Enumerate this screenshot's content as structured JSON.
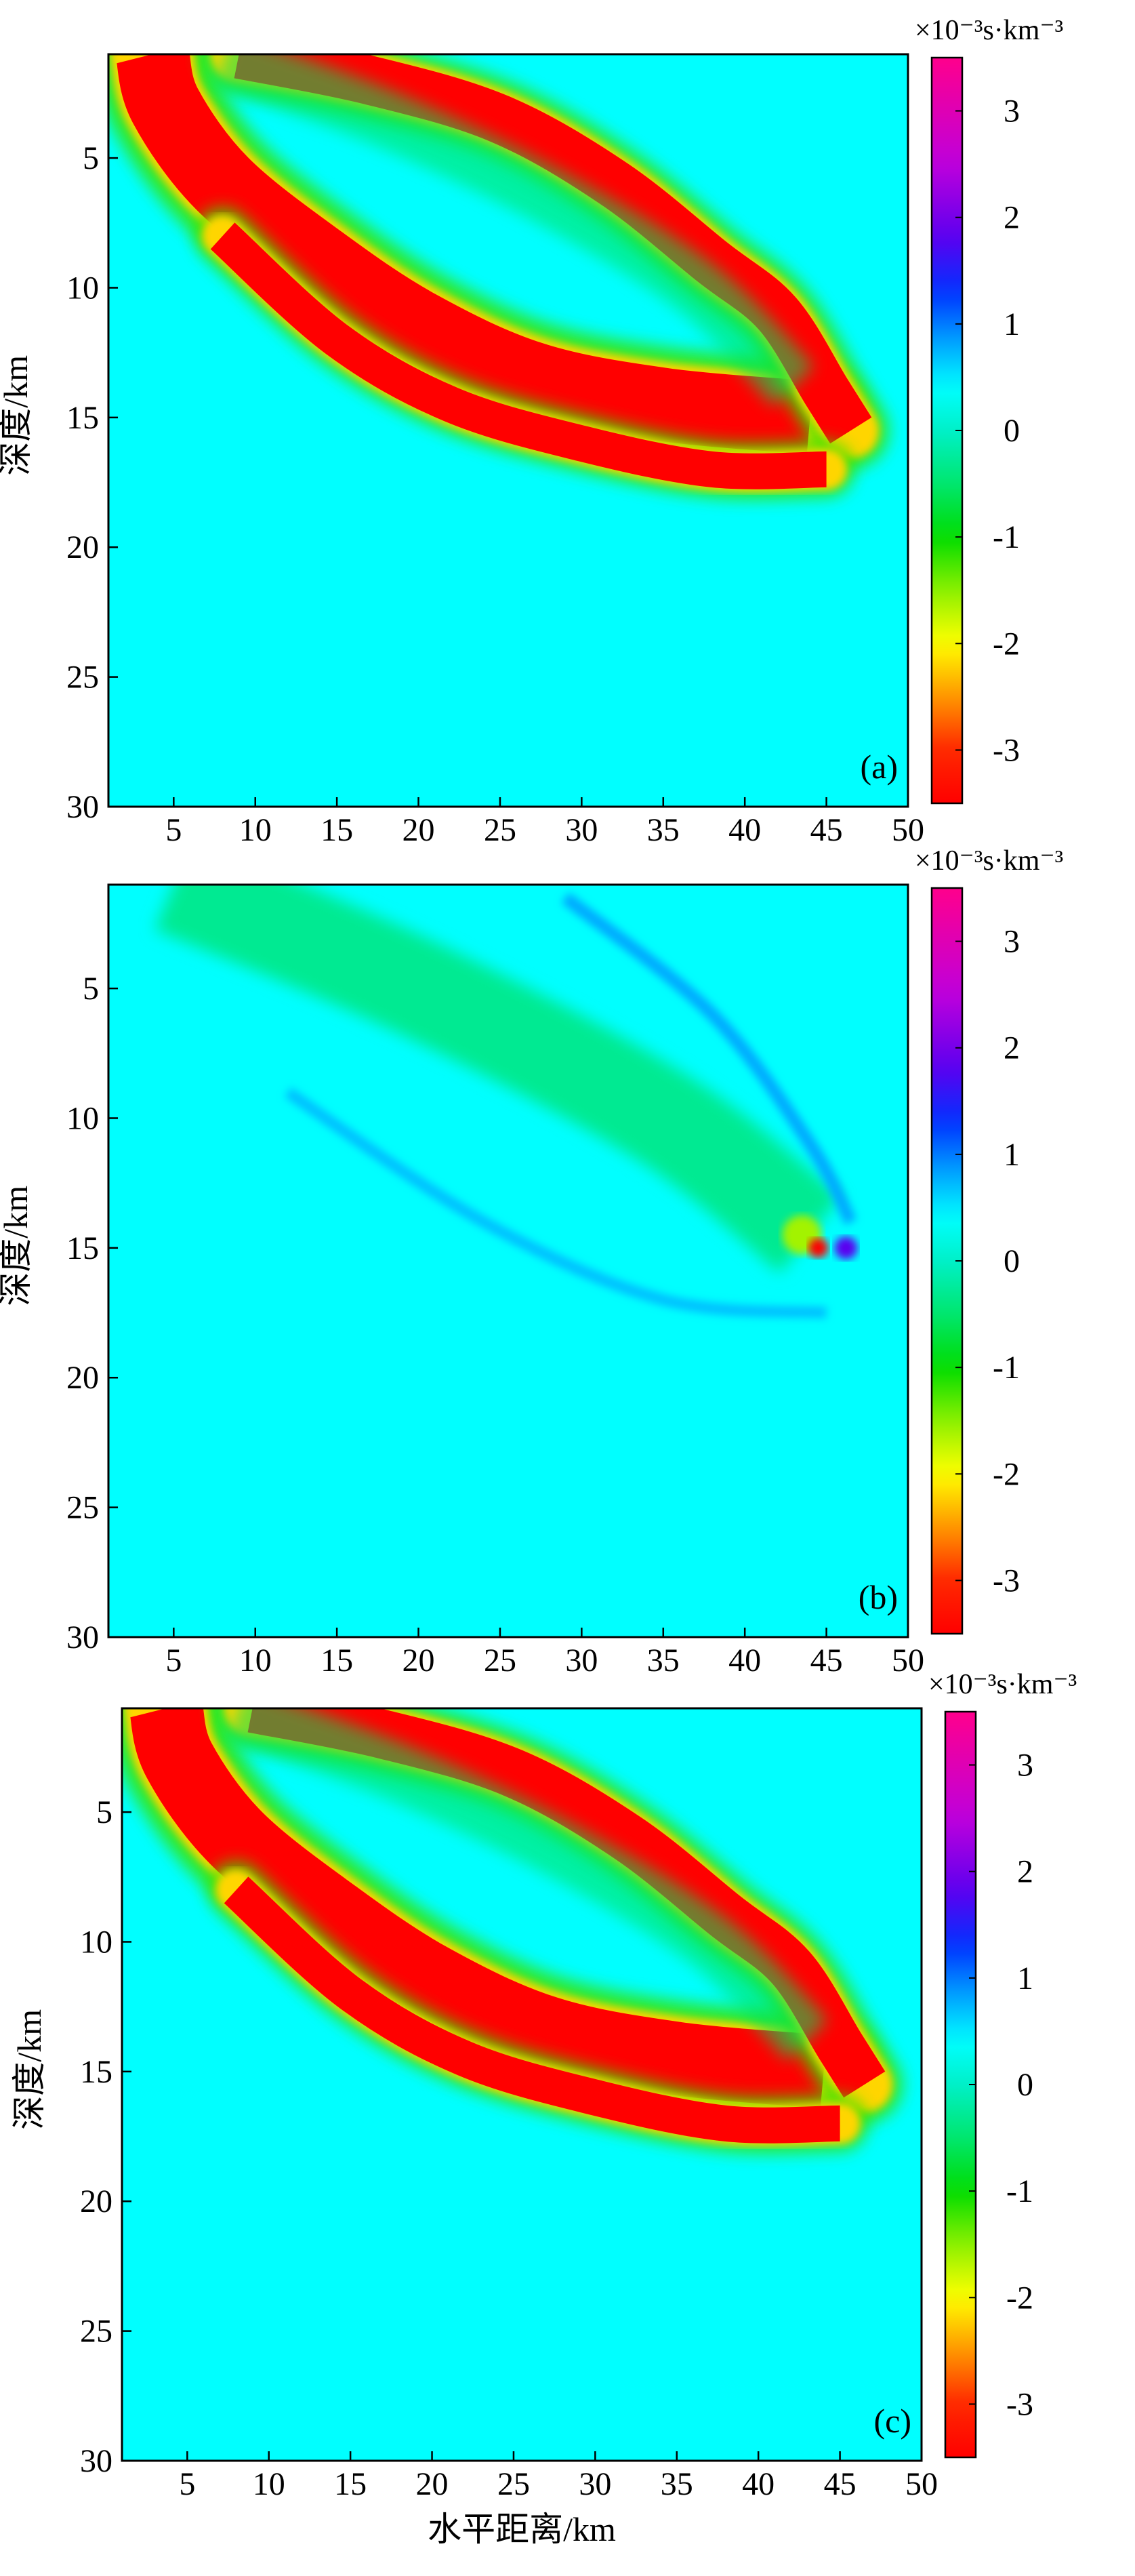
{
  "chart_data": [
    {
      "type": "heatmap",
      "panel_label": "(a)",
      "ylabel": "深度/km",
      "xlabel": "",
      "xlim": [
        1,
        50
      ],
      "ylim": [
        30,
        1
      ],
      "xticks": [
        5,
        10,
        15,
        20,
        25,
        30,
        35,
        40,
        45,
        50
      ],
      "yticks": [
        5,
        10,
        15,
        20,
        25,
        30
      ],
      "colorbar": {
        "unit": "×10⁻³s·km⁻³",
        "range": [
          -3.5,
          3.5
        ],
        "ticks": [
          3,
          2,
          1,
          0,
          -1,
          -2,
          -3
        ]
      },
      "background_value": 0.4,
      "features": [
        {
          "type": "arc",
          "value": -3.5,
          "points": [
            [
              3.7,
              1
            ],
            [
              4.5,
              3
            ],
            [
              8,
              6
            ],
            [
              14,
              9
            ],
            [
              20,
              11.5
            ],
            [
              27,
              13.5
            ],
            [
              35,
              14.5
            ],
            [
              44,
              15
            ]
          ],
          "width_km": 4.5
        },
        {
          "type": "arc",
          "value": -3.5,
          "points": [
            [
              9,
              1
            ],
            [
              17,
              2
            ],
            [
              25,
              3.5
            ],
            [
              32,
              6
            ],
            [
              38,
              9
            ],
            [
              42,
              11
            ],
            [
              45,
              14
            ],
            [
              46.5,
              15.5
            ]
          ],
          "width_km": 3.0
        },
        {
          "type": "arc",
          "value": -3.5,
          "points": [
            [
              8,
              8
            ],
            [
              15,
              12
            ],
            [
              22,
              14.5
            ],
            [
              30,
              16
            ],
            [
              38,
              17
            ],
            [
              45,
              17
            ]
          ],
          "width_km": 2.2
        }
      ]
    },
    {
      "type": "heatmap",
      "panel_label": "(b)",
      "ylabel": "深度/km",
      "xlabel": "",
      "xlim": [
        1,
        50
      ],
      "ylim": [
        30,
        1
      ],
      "xticks": [
        5,
        10,
        15,
        20,
        25,
        30,
        35,
        40,
        45,
        50
      ],
      "yticks": [
        5,
        10,
        15,
        20,
        25,
        30
      ],
      "colorbar": {
        "unit": "×10⁻³s·km⁻³",
        "range": [
          -3.5,
          3.5
        ],
        "ticks": [
          3,
          2,
          1,
          0,
          -1,
          -2,
          -3
        ]
      },
      "background_value": 0.4,
      "features": [
        {
          "type": "lens",
          "value": -0.3,
          "points": [
            [
              5,
              1
            ],
            [
              20,
              5
            ],
            [
              35,
              10
            ],
            [
              44,
              14.5
            ]
          ],
          "width_km": 6
        },
        {
          "type": "blob",
          "value": -1.6,
          "x": 43.5,
          "y": 14.5,
          "r_km": 1.2
        },
        {
          "type": "blob",
          "value": -3.5,
          "x": 44.5,
          "y": 15,
          "r_km": 0.6
        },
        {
          "type": "blob",
          "value": 1.8,
          "x": 46.2,
          "y": 15,
          "r_km": 0.7
        },
        {
          "type": "edge",
          "value": 0.8,
          "points": [
            [
              29,
              1.5
            ],
            [
              38,
              6
            ],
            [
              44,
              11
            ],
            [
              46.5,
              14
            ]
          ],
          "width_km": 0.8
        },
        {
          "type": "edge",
          "value": 0.7,
          "points": [
            [
              12,
              9
            ],
            [
              24,
              14
            ],
            [
              35,
              17
            ],
            [
              45,
              17.5
            ]
          ],
          "width_km": 0.7
        }
      ]
    },
    {
      "type": "heatmap",
      "panel_label": "(c)",
      "ylabel": "深度/km",
      "xlabel": "水平距离/km",
      "xlim": [
        1,
        50
      ],
      "ylim": [
        30,
        1
      ],
      "xticks": [
        5,
        10,
        15,
        20,
        25,
        30,
        35,
        40,
        45,
        50
      ],
      "yticks": [
        5,
        10,
        15,
        20,
        25,
        30
      ],
      "colorbar": {
        "unit": "×10⁻³s·km⁻³",
        "range": [
          -3.5,
          3.5
        ],
        "ticks": [
          3,
          2,
          1,
          0,
          -1,
          -2,
          -3
        ]
      },
      "background_value": 0.4,
      "features": [
        {
          "type": "arc",
          "value": -3.5,
          "points": [
            [
              3.7,
              1
            ],
            [
              4.5,
              3
            ],
            [
              8,
              6
            ],
            [
              14,
              9
            ],
            [
              20,
              11.5
            ],
            [
              27,
              13.5
            ],
            [
              35,
              14.5
            ],
            [
              44,
              15
            ]
          ],
          "width_km": 4.5
        },
        {
          "type": "arc",
          "value": -3.5,
          "points": [
            [
              9,
              1
            ],
            [
              17,
              2
            ],
            [
              25,
              3.5
            ],
            [
              32,
              6
            ],
            [
              38,
              9
            ],
            [
              42,
              11
            ],
            [
              45,
              14
            ],
            [
              46.5,
              15.5
            ]
          ],
          "width_km": 3.0
        },
        {
          "type": "arc",
          "value": -3.5,
          "points": [
            [
              8,
              8
            ],
            [
              15,
              12
            ],
            [
              22,
              14.5
            ],
            [
              30,
              16
            ],
            [
              38,
              17
            ],
            [
              45,
              17
            ]
          ],
          "width_km": 2.2
        }
      ]
    }
  ]
}
